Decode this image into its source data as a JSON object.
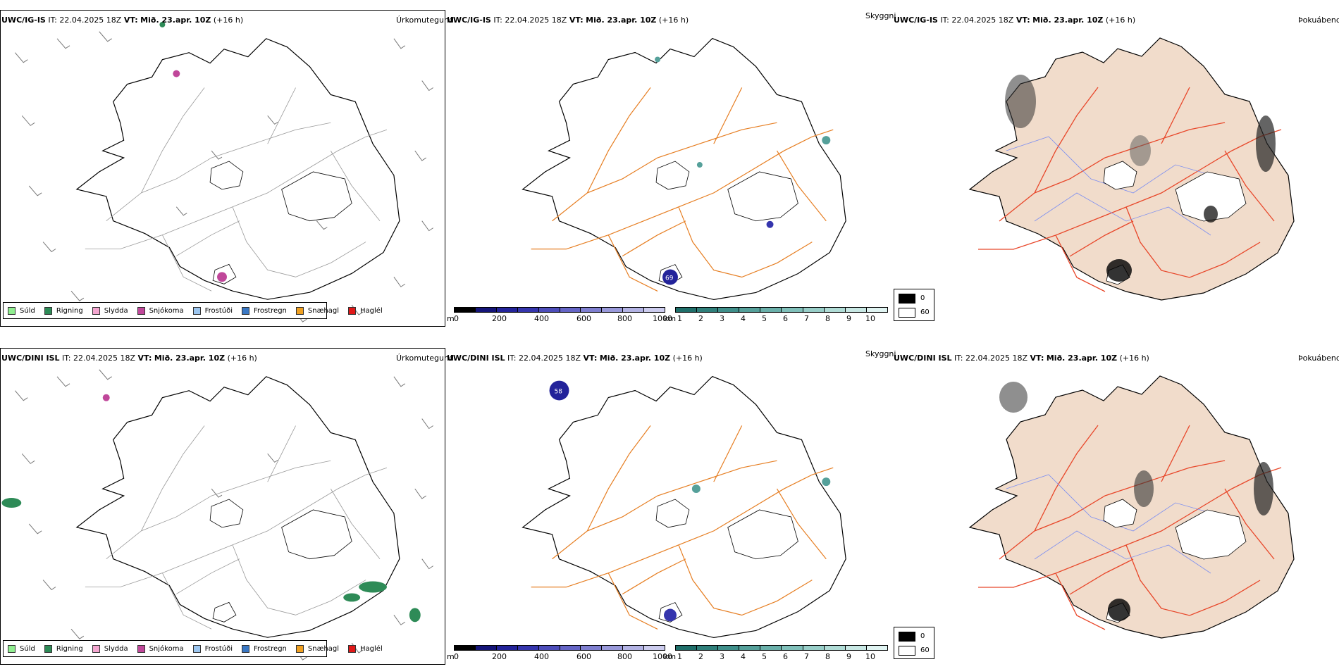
{
  "rows": [
    {
      "model": "UWC/IG-IS",
      "it_prefix": "IT:",
      "it_time": "22.04.2025 18Z",
      "vt_prefix": "VT:",
      "vt_time": "Mið. 23.apr. 10Z",
      "lead": "(+16 h)",
      "precip_label": "Úrkomutegund",
      "vis_label": "Skyggni",
      "fog_label": "Þokuábendi",
      "vis_max_value": "69"
    },
    {
      "model": "UWC/DINI ISL",
      "it_prefix": "IT:",
      "it_time": "22.04.2025 18Z",
      "vt_prefix": "VT:",
      "vt_time": "Mið. 23.apr. 10Z",
      "lead": "(+16 h)",
      "precip_label": "Úrkomutegund",
      "vis_label": "Skyggni",
      "fog_label": "Þokuábendi",
      "vis_max_value": "58"
    }
  ],
  "precip_legend": [
    {
      "label": "Súld",
      "color": "#90ee90"
    },
    {
      "label": "Rigning",
      "color": "#2e8b57"
    },
    {
      "label": "Slydda",
      "color": "#f4a6d0"
    },
    {
      "label": "Snjókoma",
      "color": "#c0479a"
    },
    {
      "label": "Frostúði",
      "color": "#9cc6f0"
    },
    {
      "label": "Frostregn",
      "color": "#3a78c4"
    },
    {
      "label": "Snæhagl",
      "color": "#f0a020"
    },
    {
      "label": "Haglél",
      "color": "#e01818"
    }
  ],
  "cloud_base_scale": {
    "unit": "m",
    "ticks": [
      "0",
      "200",
      "400",
      "600",
      "800",
      "1000"
    ],
    "colors": [
      "#000000",
      "#141478",
      "#23239a",
      "#3535ad",
      "#4d4dba",
      "#6565c6",
      "#7f7fd0",
      "#9999da",
      "#b3b3e4",
      "#ccccee"
    ]
  },
  "visibility_scale": {
    "unit": "km",
    "ticks": [
      "1",
      "2",
      "3",
      "4",
      "5",
      "6",
      "7",
      "8",
      "9",
      "10"
    ],
    "colors": [
      "#1f6f6a",
      "#2f7f7a",
      "#3f8f8a",
      "#55a09a",
      "#6ab0aa",
      "#80c0ba",
      "#98cec8",
      "#b0dcd6",
      "#c8e8e4",
      "#e0f4f2"
    ]
  },
  "fog_scale": {
    "values": [
      "0",
      "60"
    ],
    "colors": [
      "#000000",
      "#ffffff"
    ]
  },
  "colors": {
    "road": "#e67e22",
    "road_red": "#e8472a",
    "coast": "#000000",
    "land_fog": "#f1dccb",
    "river": "#7d8ff0",
    "barb": "#777777"
  }
}
